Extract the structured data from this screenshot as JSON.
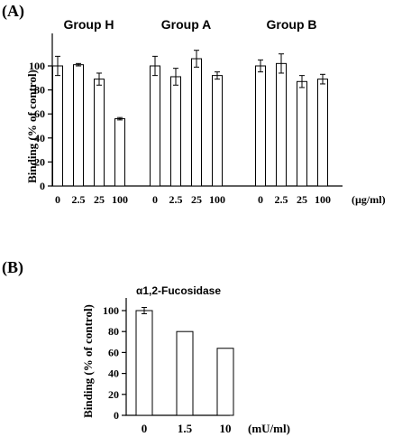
{
  "panel_a": {
    "label": "(A)",
    "ylabel": "Binding (% of control)",
    "unit": "(µg/ml)",
    "ticks": [
      "0",
      "20",
      "40",
      "60",
      "80",
      "100"
    ],
    "groups": [
      "Group H",
      "Group A",
      "Group B"
    ]
  },
  "panel_b": {
    "label": "(B)",
    "title": "α1,2-Fucosidase",
    "ylabel": "Binding (% of control)",
    "unit": "(mU/ml)",
    "ticks": [
      "0",
      "20",
      "40",
      "60",
      "80",
      "100"
    ]
  },
  "chart_data": [
    {
      "type": "bar",
      "panel": "(A)",
      "title": "",
      "ylabel": "Binding (% of control)",
      "xlabel": "(µg/ml)",
      "ylim": [
        0,
        120
      ],
      "categories": [
        "0",
        "2.5",
        "25",
        "100"
      ],
      "series": [
        {
          "name": "Group H",
          "values": [
            100,
            101,
            89,
            56
          ],
          "errors": [
            8,
            1,
            5,
            1
          ]
        },
        {
          "name": "Group A",
          "values": [
            100,
            91,
            106,
            92
          ],
          "errors": [
            8,
            7,
            7,
            3
          ]
        },
        {
          "name": "Group B",
          "values": [
            100,
            102,
            87,
            89
          ],
          "errors": [
            5,
            8,
            5,
            4
          ]
        }
      ]
    },
    {
      "type": "bar",
      "panel": "(B)",
      "title": "α1,2-Fucosidase",
      "ylabel": "Binding (% of control)",
      "xlabel": "(mU/ml)",
      "ylim": [
        0,
        120
      ],
      "categories": [
        "0",
        "1.5",
        "10"
      ],
      "values": [
        100,
        80,
        64
      ],
      "errors": [
        3,
        0,
        0
      ]
    }
  ]
}
